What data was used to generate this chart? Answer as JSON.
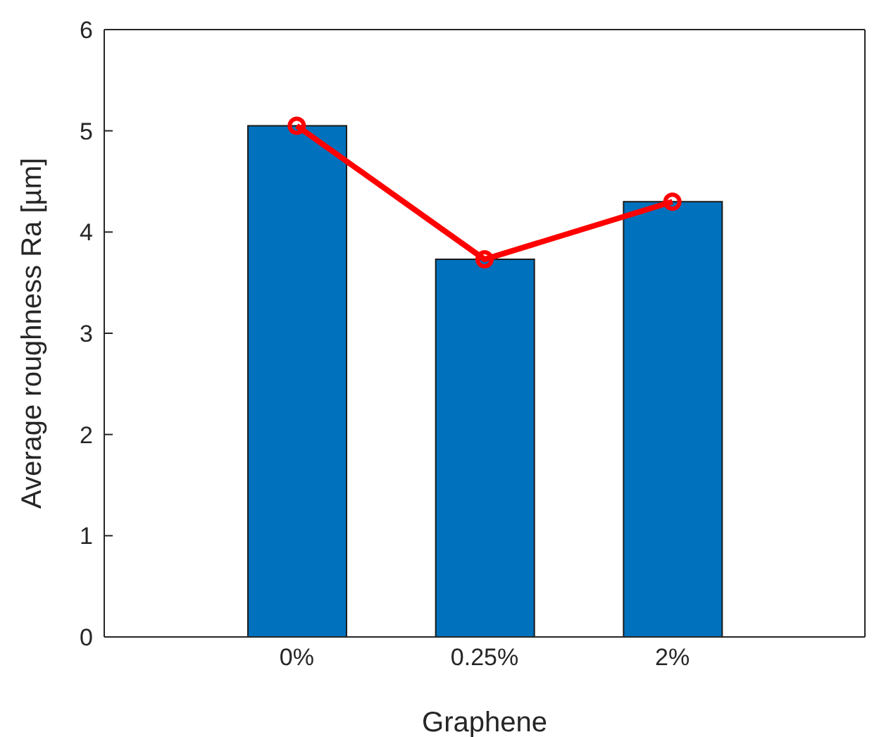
{
  "chart_data": {
    "type": "bar",
    "categories": [
      "0%",
      "0.25%",
      "2%"
    ],
    "xlabel": "Graphene",
    "ylabel": "Average roughness Ra [µm]",
    "ylim": [
      0,
      6
    ],
    "yticks": [
      0,
      1,
      2,
      3,
      4,
      5,
      6
    ],
    "grid": false,
    "legend": false,
    "marker": "circle",
    "line_style": "solid",
    "series": [
      {
        "color": "#0072bd",
        "values": [
          5.05,
          3.73,
          4.3
        ]
      },
      {
        "type": "line",
        "color": "#ff0000",
        "values": [
          5.05,
          3.73,
          4.3
        ]
      }
    ]
  }
}
